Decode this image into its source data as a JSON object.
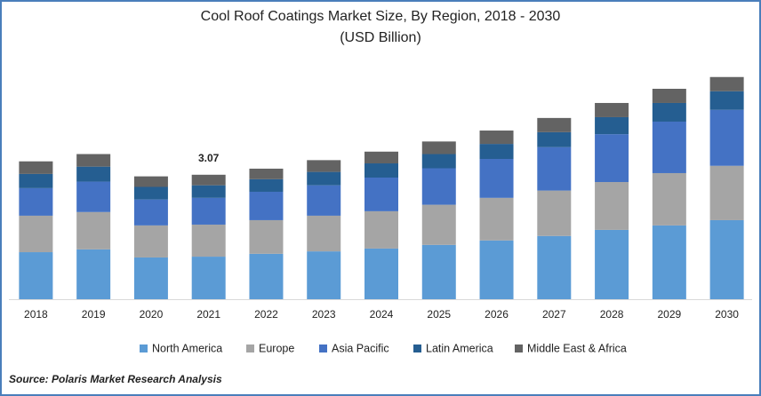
{
  "chart_data": {
    "type": "stacked-bar",
    "title": "Cool Roof Coatings Market Size, By Region, 2018 - 2030",
    "subtitle": "(USD Billion)",
    "source": "Source: Polaris Market Research Analysis",
    "categories": [
      "2018",
      "2019",
      "2020",
      "2021",
      "2022",
      "2023",
      "2024",
      "2025",
      "2026",
      "2027",
      "2028",
      "2029",
      "2030"
    ],
    "series": [
      {
        "name": "North America",
        "color": "#5b9bd5",
        "values": [
          1.16,
          1.23,
          1.03,
          1.05,
          1.12,
          1.18,
          1.25,
          1.34,
          1.45,
          1.56,
          1.71,
          1.82,
          1.95
        ]
      },
      {
        "name": "Europe",
        "color": "#a5a5a5",
        "values": [
          0.9,
          0.92,
          0.79,
          0.79,
          0.83,
          0.88,
          0.92,
          0.99,
          1.05,
          1.12,
          1.18,
          1.29,
          1.34
        ]
      },
      {
        "name": "Asia Pacific",
        "color": "#4472c4",
        "values": [
          0.68,
          0.75,
          0.64,
          0.66,
          0.7,
          0.75,
          0.83,
          0.9,
          0.96,
          1.07,
          1.18,
          1.27,
          1.38
        ]
      },
      {
        "name": "Latin America",
        "color": "#255e91",
        "values": [
          0.35,
          0.37,
          0.31,
          0.31,
          0.31,
          0.33,
          0.35,
          0.35,
          0.37,
          0.37,
          0.42,
          0.46,
          0.46
        ]
      },
      {
        "name": "Middle East & Africa",
        "color": "#636363",
        "values": [
          0.31,
          0.31,
          0.26,
          0.26,
          0.26,
          0.29,
          0.29,
          0.31,
          0.33,
          0.35,
          0.35,
          0.35,
          0.35
        ]
      }
    ],
    "ylim": [
      0,
      6
    ],
    "annotations": [
      {
        "x": "2021",
        "value": 3.07
      }
    ]
  }
}
